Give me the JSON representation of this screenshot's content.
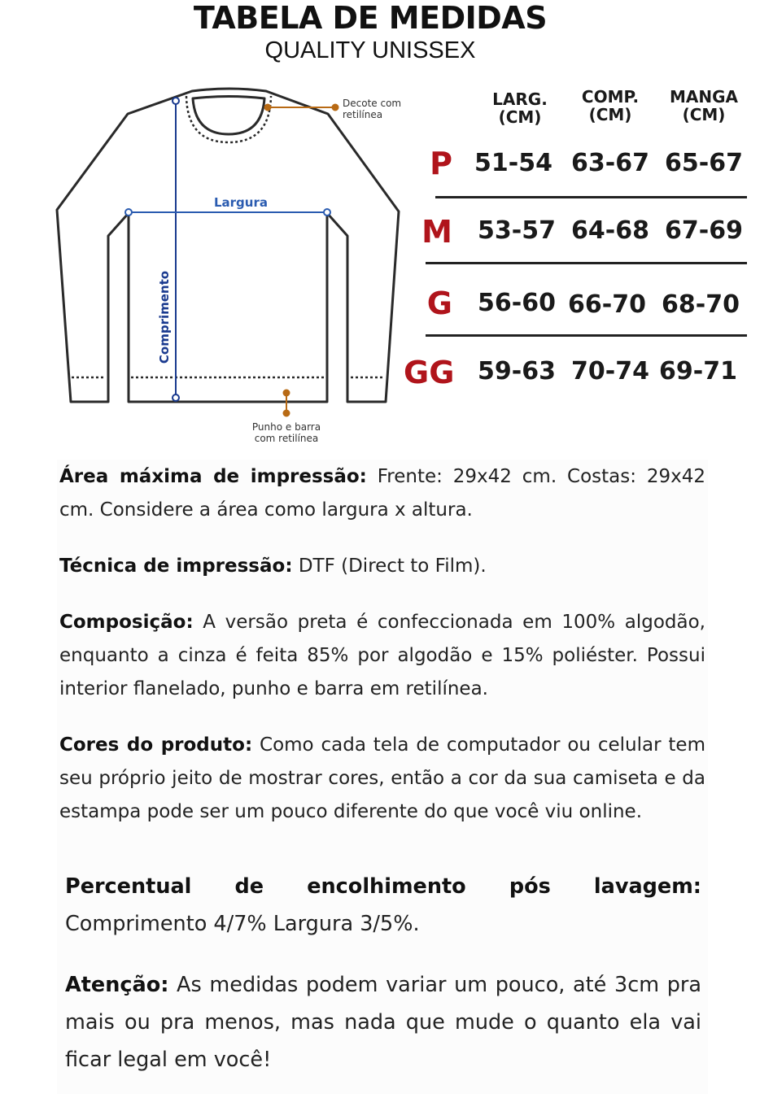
{
  "header": {
    "title": "TABELA DE MEDIDAS",
    "subtitle": "QUALITY UNISSEX"
  },
  "diagram": {
    "neck_label_1": "Decote com",
    "neck_label_2": "retilínea",
    "width_label": "Largura",
    "length_label": "Comprimento",
    "hem_label_1": "Punho e barra",
    "hem_label_2": "com retilínea",
    "colors": {
      "outline": "#2a2a2a",
      "measure": "#1a3a8f",
      "annotation": "#b86a14"
    }
  },
  "table": {
    "columns": [
      {
        "l1": "LARG.",
        "l2": "(CM)"
      },
      {
        "l1": "COMP.",
        "l2": "(CM)"
      },
      {
        "l1": "MANGA",
        "l2": "(CM)"
      }
    ],
    "rows": [
      {
        "size": "P",
        "values": [
          "51-54",
          "63-67",
          "65-67"
        ]
      },
      {
        "size": "M",
        "values": [
          "53-57",
          "64-68",
          "67-69"
        ]
      },
      {
        "size": "G",
        "values": [
          "56-60",
          "66-70",
          "68-70"
        ]
      },
      {
        "size": "GG",
        "values": [
          "59-63",
          "70-74",
          "69-71"
        ]
      }
    ],
    "size_color": "#b0141b"
  },
  "info": [
    {
      "label": "Área máxima de impressão:",
      "text": " Frente: 29x42 cm. Costas: 29x42 cm. Considere a área como largura x altura."
    },
    {
      "label": "Técnica de impressão:",
      "text": " DTF (Direct to Film)."
    },
    {
      "label": "Composição:",
      "text": " A versão preta é confeccionada em 100% algodão, enquanto a cinza é feita 85% por algodão e 15% poliéster. Possui interior flanelado, punho e barra em retilínea."
    },
    {
      "label": "Cores do produto:",
      "text": " Como cada tela de computador ou celular tem seu próprio jeito de mostrar cores, então a cor da sua camiseta e da estampa pode ser um pouco diferente do que você viu online."
    },
    {
      "label": "Percentual de encolhimento pós lavagem:",
      "text": " Comprimento 4/7% Largura 3/5%."
    },
    {
      "label": "Atenção:",
      "text": " As medidas podem variar um pouco, até 3cm pra mais ou pra menos, mas nada que mude o quanto ela vai ficar legal em você!"
    }
  ]
}
